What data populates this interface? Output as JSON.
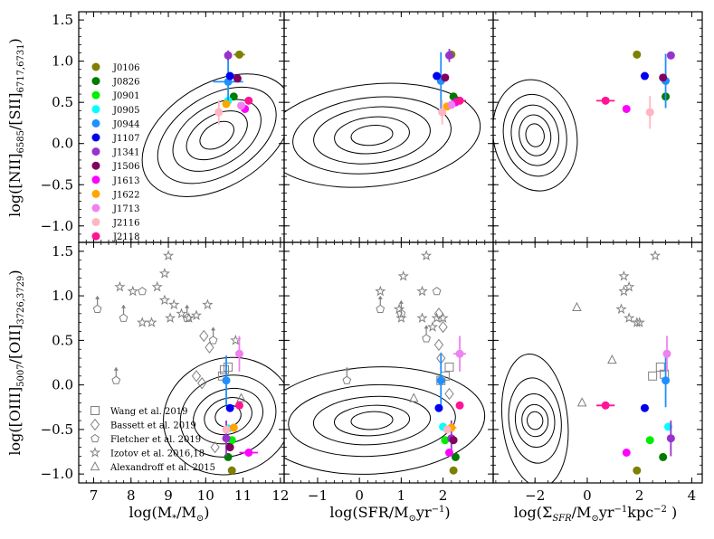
{
  "colors": {
    "J0106": "#7f7f00",
    "J0826": "#007a00",
    "J0901": "#00ee00",
    "J0905": "#00ffff",
    "J0944": "#1e90ff",
    "J1107": "#0000ee",
    "J1341": "#9932cc",
    "J1506": "#800060",
    "J1613": "#ff00ff",
    "J1622": "#ffa500",
    "J1713": "#ee82ee",
    "J2116": "#ffb6c1",
    "J2118": "#ff1493",
    "comparison": "#808080",
    "contour": "#000000"
  },
  "chart_data": {
    "type": "scatter",
    "galaxy_legend": [
      "J0106",
      "J0826",
      "J0901",
      "J0905",
      "J0944",
      "J1107",
      "J1341",
      "J1506",
      "J1613",
      "J1622",
      "J1713",
      "J2116",
      "J2118"
    ],
    "literature_legend": [
      {
        "name": "Wang et al. 2019",
        "marker": "square"
      },
      {
        "name": "Bassett et al. 2019",
        "marker": "diamond"
      },
      {
        "name": "Fletcher et al. 2019",
        "marker": "pentagon"
      },
      {
        "name": "Izotov et al. 2016,18",
        "marker": "star"
      },
      {
        "name": "Alexandroff et al. 2015",
        "marker": "triangle"
      }
    ],
    "ylabel_top": "log([NII]6585/[SII]6717,6731)",
    "ylabel_bottom": "log([OIII]5007/[OII]3726,3729)",
    "xlabels": [
      "log(M*/M⊙)",
      "log(SFR/M⊙yr−1)",
      "log(ΣSFR/M⊙yr−1kpc−2)"
    ],
    "xlim": [
      [
        6.6,
        12.1
      ],
      [
        -1.8,
        3.2
      ],
      [
        -3.6,
        4.4
      ]
    ],
    "ylim_top": [
      -1.2,
      1.6
    ],
    "ylim_bottom": [
      -1.1,
      1.6
    ],
    "xticks": [
      [
        7,
        8,
        9,
        10,
        11,
        12
      ],
      [
        -1,
        0,
        1,
        2
      ],
      [
        -2,
        0,
        2,
        4
      ]
    ],
    "yticks_top": [
      -1.0,
      -0.5,
      0.0,
      0.5,
      1.0,
      1.5
    ],
    "yticks_bottom": [
      -1.0,
      -0.5,
      0.0,
      0.5,
      1.0,
      1.5
    ],
    "top": [
      {
        "points": [
          {
            "g": "J0106",
            "x": 10.9,
            "y": 1.08,
            "xerr": 0.15
          },
          {
            "g": "J0826",
            "x": 10.75,
            "y": 0.57
          },
          {
            "g": "J0905",
            "x": 10.6,
            "y": 0.52
          },
          {
            "g": "J0944",
            "x": 10.6,
            "y": 0.75,
            "yerr": 0.3,
            "xerr": 0.4
          },
          {
            "g": "J1107",
            "x": 10.65,
            "y": 0.82
          },
          {
            "g": "J1341",
            "x": 10.6,
            "y": 1.07,
            "yerr": 0.06
          },
          {
            "g": "J1506",
            "x": 10.85,
            "y": 0.79
          },
          {
            "g": "J1613",
            "x": 11.05,
            "y": 0.42
          },
          {
            "g": "J1622",
            "x": 10.55,
            "y": 0.48
          },
          {
            "g": "J1713",
            "x": 10.95,
            "y": 0.46
          },
          {
            "g": "J2116",
            "x": 10.35,
            "y": 0.38,
            "yerr": 0.15
          },
          {
            "g": "J2118",
            "x": 11.15,
            "y": 0.52
          }
        ]
      },
      {
        "points": [
          {
            "g": "J0106",
            "x": 2.2,
            "y": 1.08
          },
          {
            "g": "J0826",
            "x": 2.25,
            "y": 0.57
          },
          {
            "g": "J0905",
            "x": 1.95,
            "y": 0.78
          },
          {
            "g": "J0944",
            "x": 1.95,
            "y": 0.76,
            "yerr": 0.35
          },
          {
            "g": "J1107",
            "x": 1.85,
            "y": 0.82
          },
          {
            "g": "J1341",
            "x": 2.15,
            "y": 1.07,
            "yerr": 0.08
          },
          {
            "g": "J1506",
            "x": 2.05,
            "y": 0.8
          },
          {
            "g": "J1613",
            "x": 2.3,
            "y": 0.5
          },
          {
            "g": "J1622",
            "x": 2.1,
            "y": 0.45
          },
          {
            "g": "J1713",
            "x": 2.2,
            "y": 0.47
          },
          {
            "g": "J2116",
            "x": 1.98,
            "y": 0.38,
            "yerr": 0.15
          },
          {
            "g": "J2118",
            "x": 2.4,
            "y": 0.52,
            "xerr": 0.15
          }
        ]
      },
      {
        "points": [
          {
            "g": "J0106",
            "x": 1.9,
            "y": 1.08
          },
          {
            "g": "J0826",
            "x": 3.0,
            "y": 0.57
          },
          {
            "g": "J0944",
            "x": 3.0,
            "y": 0.76,
            "yerr": 0.33
          },
          {
            "g": "J1107",
            "x": 2.2,
            "y": 0.82
          },
          {
            "g": "J1341",
            "x": 3.2,
            "y": 1.07
          },
          {
            "g": "J1506",
            "x": 2.9,
            "y": 0.8
          },
          {
            "g": "J1613",
            "x": 1.5,
            "y": 0.42
          },
          {
            "g": "J2116",
            "x": 2.4,
            "y": 0.38,
            "yerr": 0.2
          },
          {
            "g": "J2118",
            "x": 0.7,
            "y": 0.52,
            "xerr": 0.35
          }
        ]
      }
    ],
    "bottom": [
      {
        "points": [
          {
            "g": "J0106",
            "x": 10.7,
            "y": -0.96
          },
          {
            "g": "J0826",
            "x": 10.6,
            "y": -0.81
          },
          {
            "g": "J0901",
            "x": 10.7,
            "y": -0.62
          },
          {
            "g": "J0905",
            "x": 10.6,
            "y": -0.49
          },
          {
            "g": "J0944",
            "x": 10.55,
            "y": 0.05,
            "yerr": 0.28
          },
          {
            "g": "J1107",
            "x": 10.65,
            "y": -0.26
          },
          {
            "g": "J1341",
            "x": 10.55,
            "y": -0.6,
            "yerr": 0.2
          },
          {
            "g": "J1506",
            "x": 10.65,
            "y": -0.7
          },
          {
            "g": "J1613",
            "x": 11.15,
            "y": -0.76,
            "xerr": 0.25
          },
          {
            "g": "J1622",
            "x": 10.75,
            "y": -0.48,
            "xerr": 0.1
          },
          {
            "g": "J1713",
            "x": 10.9,
            "y": 0.35,
            "yerr": 0.2
          },
          {
            "g": "J2116",
            "x": 10.55,
            "y": -0.5
          },
          {
            "g": "J2118",
            "x": 10.9,
            "y": -0.23
          }
        ]
      },
      {
        "points": [
          {
            "g": "J0106",
            "x": 2.25,
            "y": -0.96
          },
          {
            "g": "J0826",
            "x": 2.3,
            "y": -0.81
          },
          {
            "g": "J0901",
            "x": 2.05,
            "y": -0.62
          },
          {
            "g": "J0905",
            "x": 2.0,
            "y": -0.47
          },
          {
            "g": "J0944",
            "x": 1.95,
            "y": 0.05,
            "yerr": 0.3
          },
          {
            "g": "J1107",
            "x": 1.9,
            "y": -0.26
          },
          {
            "g": "J1341",
            "x": 2.2,
            "y": -0.6,
            "yerr": 0.2
          },
          {
            "g": "J1506",
            "x": 2.25,
            "y": -0.62
          },
          {
            "g": "J1613",
            "x": 2.15,
            "y": -0.76
          },
          {
            "g": "J1622",
            "x": 2.2,
            "y": -0.48,
            "xerr": 0.12
          },
          {
            "g": "J1713",
            "x": 2.4,
            "y": 0.35,
            "xerr": 0.15,
            "yerr": 0.2
          },
          {
            "g": "J2116",
            "x": 2.1,
            "y": -0.5
          },
          {
            "g": "J2118",
            "x": 2.4,
            "y": -0.23
          }
        ]
      },
      {
        "points": [
          {
            "g": "J0106",
            "x": 1.9,
            "y": -0.96
          },
          {
            "g": "J0826",
            "x": 2.9,
            "y": -0.81
          },
          {
            "g": "J0901",
            "x": 2.4,
            "y": -0.62
          },
          {
            "g": "J0905",
            "x": 3.1,
            "y": -0.47
          },
          {
            "g": "J0944",
            "x": 3.0,
            "y": 0.05,
            "yerr": 0.3
          },
          {
            "g": "J1107",
            "x": 2.2,
            "y": -0.26
          },
          {
            "g": "J1341",
            "x": 3.2,
            "y": -0.6,
            "yerr": 0.2
          },
          {
            "g": "J1613",
            "x": 1.5,
            "y": -0.76
          },
          {
            "g": "J1713",
            "x": 3.05,
            "y": 0.35,
            "yerr": 0.2
          },
          {
            "g": "J2118",
            "x": 0.7,
            "y": -0.23,
            "xerr": 0.35
          }
        ]
      }
    ],
    "literature_bottom": [
      {
        "points": [
          {
            "m": "square",
            "x": 10.5,
            "y": 0.17
          },
          {
            "m": "square",
            "x": 10.45,
            "y": 0.1
          },
          {
            "m": "square",
            "x": 10.6,
            "y": 0.2
          },
          {
            "m": "diamond",
            "x": 9.75,
            "y": 0.1
          },
          {
            "m": "diamond",
            "x": 9.9,
            "y": 0.02
          },
          {
            "m": "diamond",
            "x": 10.1,
            "y": 0.42
          },
          {
            "m": "diamond",
            "x": 9.95,
            "y": 0.55
          },
          {
            "m": "diamond",
            "x": 10.25,
            "y": -0.7
          },
          {
            "m": "pentagon",
            "x": 7.6,
            "y": 0.05,
            "up": true
          },
          {
            "m": "pentagon",
            "x": 7.1,
            "y": 0.85,
            "up": true
          },
          {
            "m": "pentagon",
            "x": 7.8,
            "y": 0.75,
            "up": true
          },
          {
            "m": "pentagon",
            "x": 9.5,
            "y": 0.75,
            "up": true
          },
          {
            "m": "pentagon",
            "x": 10.2,
            "y": 0.5,
            "up": true
          },
          {
            "m": "pentagon",
            "x": 8.3,
            "y": 1.05
          },
          {
            "m": "star",
            "x": 9.0,
            "y": 1.45
          },
          {
            "m": "star",
            "x": 8.9,
            "y": 1.25
          },
          {
            "m": "star",
            "x": 8.7,
            "y": 1.1
          },
          {
            "m": "star",
            "x": 8.05,
            "y": 1.05
          },
          {
            "m": "star",
            "x": 7.7,
            "y": 1.1
          },
          {
            "m": "star",
            "x": 8.9,
            "y": 0.95
          },
          {
            "m": "star",
            "x": 9.15,
            "y": 0.9
          },
          {
            "m": "star",
            "x": 9.35,
            "y": 0.8
          },
          {
            "m": "star",
            "x": 8.3,
            "y": 0.7
          },
          {
            "m": "star",
            "x": 8.55,
            "y": 0.7
          },
          {
            "m": "star",
            "x": 9.05,
            "y": 0.75
          },
          {
            "m": "star",
            "x": 9.55,
            "y": 0.75
          },
          {
            "m": "star",
            "x": 9.75,
            "y": 0.78
          },
          {
            "m": "star",
            "x": 10.05,
            "y": 0.9
          },
          {
            "m": "star",
            "x": 10.8,
            "y": 0.5
          },
          {
            "m": "triangle",
            "x": 10.95,
            "y": -0.15
          }
        ]
      },
      {
        "points": [
          {
            "m": "square",
            "x": 2.05,
            "y": 0.1
          },
          {
            "m": "square",
            "x": 2.15,
            "y": 0.2
          },
          {
            "m": "square",
            "x": 1.95,
            "y": 0.05
          },
          {
            "m": "diamond",
            "x": 1.9,
            "y": 0.45
          },
          {
            "m": "diamond",
            "x": 2.0,
            "y": 0.65
          },
          {
            "m": "diamond",
            "x": 1.9,
            "y": 0.8
          },
          {
            "m": "diamond",
            "x": 1.95,
            "y": 0.3
          },
          {
            "m": "diamond",
            "x": 2.15,
            "y": -0.1
          },
          {
            "m": "pentagon",
            "x": -0.3,
            "y": 0.05,
            "up": true
          },
          {
            "m": "pentagon",
            "x": 0.5,
            "y": 0.85,
            "up": true
          },
          {
            "m": "pentagon",
            "x": 1.0,
            "y": 0.8,
            "up": true
          },
          {
            "m": "pentagon",
            "x": 1.6,
            "y": 0.52,
            "up": true
          },
          {
            "m": "pentagon",
            "x": 1.85,
            "y": 1.05
          },
          {
            "m": "star",
            "x": 1.6,
            "y": 1.45
          },
          {
            "m": "star",
            "x": 1.05,
            "y": 1.22
          },
          {
            "m": "star",
            "x": 1.5,
            "y": 1.05
          },
          {
            "m": "star",
            "x": 0.5,
            "y": 1.05
          },
          {
            "m": "star",
            "x": 0.95,
            "y": 0.85
          },
          {
            "m": "star",
            "x": 1.0,
            "y": 0.75
          },
          {
            "m": "star",
            "x": 1.5,
            "y": 0.75
          },
          {
            "m": "star",
            "x": 1.75,
            "y": 0.65
          },
          {
            "m": "star",
            "x": 1.85,
            "y": 0.75
          },
          {
            "m": "star",
            "x": 2.0,
            "y": 0.75
          },
          {
            "m": "triangle",
            "x": 1.3,
            "y": -0.15
          }
        ]
      },
      {
        "points": [
          {
            "m": "square",
            "x": 2.5,
            "y": 0.1
          },
          {
            "m": "square",
            "x": 2.8,
            "y": 0.2
          },
          {
            "m": "square",
            "x": 2.95,
            "y": 0.12
          },
          {
            "m": "star",
            "x": 2.6,
            "y": 1.45
          },
          {
            "m": "star",
            "x": 1.4,
            "y": 1.22
          },
          {
            "m": "star",
            "x": 1.6,
            "y": 1.1
          },
          {
            "m": "star",
            "x": 1.4,
            "y": 1.05
          },
          {
            "m": "star",
            "x": 1.3,
            "y": 0.85
          },
          {
            "m": "star",
            "x": 1.6,
            "y": 0.75
          },
          {
            "m": "star",
            "x": 1.9,
            "y": 0.7
          },
          {
            "m": "star",
            "x": 2.0,
            "y": 0.7
          },
          {
            "m": "triangle",
            "x": -0.4,
            "y": 0.87
          },
          {
            "m": "triangle",
            "x": 0.95,
            "y": 0.28
          },
          {
            "m": "triangle",
            "x": -0.2,
            "y": -0.2
          }
        ]
      }
    ]
  }
}
